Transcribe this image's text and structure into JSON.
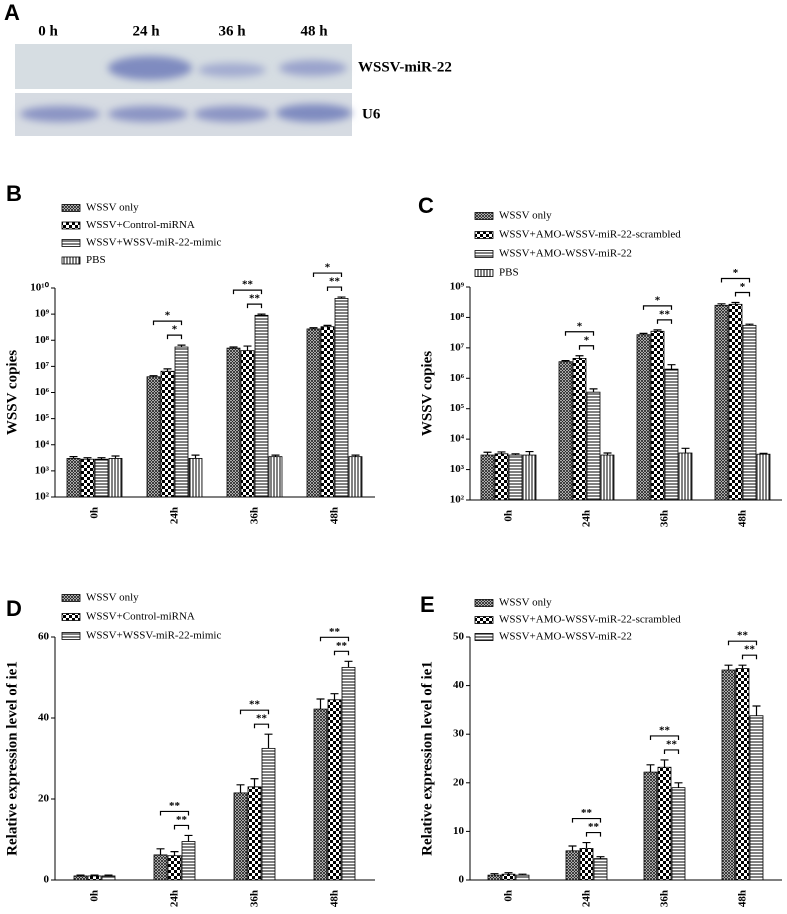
{
  "panel_a": {
    "panel": "A",
    "lanes": [
      "0 h",
      "24 h",
      "36 h",
      "48 h"
    ],
    "bands": [
      "WSSV-miR-22",
      "U6"
    ]
  },
  "chart_data": [
    {
      "panel": "B",
      "type": "bar",
      "log_scale": true,
      "ylabel": "WSSV copies",
      "legend": "upper left",
      "categories": [
        "0h",
        "24h",
        "36h",
        "48h"
      ],
      "ylim": [
        100,
        10000000000
      ],
      "yticks": [
        {
          "value": 100,
          "label": "10²"
        },
        {
          "value": 1000,
          "label": "10³"
        },
        {
          "value": 10000,
          "label": "10⁴"
        },
        {
          "value": 100000,
          "label": "10⁵"
        },
        {
          "value": 1000000,
          "label": "10⁶"
        },
        {
          "value": 10000000,
          "label": "10⁷"
        },
        {
          "value": 100000000,
          "label": "10⁸"
        },
        {
          "value": 1000000000,
          "label": "10⁹"
        },
        {
          "value": 10000000000,
          "label": "10¹⁰"
        }
      ],
      "series": [
        {
          "name": "WSSV only",
          "pattern": "cross",
          "color": "#000000",
          "values": [
            3000,
            4000000,
            50000000,
            270000000
          ],
          "errors": [
            500,
            400000,
            5000000,
            30000000
          ]
        },
        {
          "name": "WSSV+Control-miRNA",
          "pattern": "checker",
          "color": "#000000",
          "values": [
            2800,
            6500000,
            40000000,
            330000000
          ],
          "errors": [
            400,
            1500000,
            20000000,
            40000000
          ]
        },
        {
          "name": "WSSV+WSSV-miR-22-mimic",
          "pattern": "hlines",
          "color": "#000000",
          "values": [
            2800,
            55000000,
            900000000,
            4000000000
          ],
          "errors": [
            400,
            10000000,
            100000000,
            500000000
          ]
        },
        {
          "name": "PBS",
          "pattern": "vlines",
          "color": "#000000",
          "values": [
            3000,
            3000,
            3500,
            3500
          ],
          "errors": [
            700,
            1000,
            500,
            500
          ]
        }
      ],
      "significance": [
        [],
        [
          "*",
          "*"
        ],
        [
          "**",
          "**"
        ],
        [
          "*",
          "**"
        ]
      ]
    },
    {
      "panel": "C",
      "type": "bar",
      "log_scale": true,
      "ylabel": "WSSV copies",
      "legend": "upper left",
      "categories": [
        "0h",
        "24h",
        "36h",
        "48h"
      ],
      "ylim": [
        100,
        1000000000
      ],
      "yticks": [
        {
          "value": 100,
          "label": "10²"
        },
        {
          "value": 1000,
          "label": "10³"
        },
        {
          "value": 10000,
          "label": "10⁴"
        },
        {
          "value": 100000,
          "label": "10⁵"
        },
        {
          "value": 1000000,
          "label": "10⁶"
        },
        {
          "value": 10000000,
          "label": "10⁷"
        },
        {
          "value": 100000000,
          "label": "10⁸"
        },
        {
          "value": 1000000000,
          "label": "10⁹"
        }
      ],
      "series": [
        {
          "name": "WSSV only",
          "pattern": "cross",
          "color": "#000000",
          "values": [
            3000,
            3500000,
            27000000,
            250000000
          ],
          "errors": [
            700,
            300000,
            3000000,
            30000000
          ]
        },
        {
          "name": "WSSV+AMO-WSSV-miR-22-scrambled",
          "pattern": "checker",
          "color": "#000000",
          "values": [
            3300,
            4500000,
            35000000,
            270000000
          ],
          "errors": [
            500,
            1000000,
            4000000,
            40000000
          ]
        },
        {
          "name": "WSSV+AMO-WSSV-miR-22",
          "pattern": "hlines",
          "color": "#000000",
          "values": [
            3000,
            350000,
            2000000,
            55000000
          ],
          "errors": [
            300,
            100000,
            800000,
            5000000
          ]
        },
        {
          "name": "PBS",
          "pattern": "vlines",
          "color": "#000000",
          "values": [
            3000,
            3000,
            3500,
            3200
          ],
          "errors": [
            900,
            500,
            1500,
            200
          ]
        }
      ],
      "significance": [
        [],
        [
          "*",
          "*"
        ],
        [
          "*",
          "**"
        ],
        [
          "*",
          "*"
        ]
      ]
    },
    {
      "panel": "D",
      "type": "bar",
      "log_scale": false,
      "ylabel": "Relative expression level of ie1",
      "legend": "upper left",
      "categories": [
        "0h",
        "24h",
        "36h",
        "48h"
      ],
      "ylim": [
        0,
        60
      ],
      "yticks": [
        0,
        20,
        40,
        60
      ],
      "series": [
        {
          "name": "WSSV only",
          "pattern": "cross",
          "color": "#000000",
          "values": [
            1,
            6.2,
            21.5,
            42.2
          ],
          "errors": [
            0.2,
            1.5,
            2,
            2.5
          ]
        },
        {
          "name": "WSSV+Control-miRNA",
          "pattern": "checker",
          "color": "#000000",
          "values": [
            1,
            6,
            23,
            44.5
          ],
          "errors": [
            0.2,
            1,
            2,
            1.5
          ]
        },
        {
          "name": "WSSV+WSSV-miR-22-mimic",
          "pattern": "hlines",
          "color": "#000000",
          "values": [
            1,
            9.5,
            32.5,
            52.5
          ],
          "errors": [
            0.2,
            1.5,
            3.5,
            1.5
          ]
        }
      ],
      "significance": [
        [],
        [
          "**",
          "**"
        ],
        [
          "**",
          "**"
        ],
        [
          "**",
          "**"
        ]
      ]
    },
    {
      "panel": "E",
      "type": "bar",
      "log_scale": false,
      "ylabel": "Relative expression level of ie1",
      "legend": "upper left",
      "categories": [
        "0h",
        "24h",
        "36h",
        "48h"
      ],
      "ylim": [
        0,
        50
      ],
      "yticks": [
        0,
        10,
        20,
        30,
        40,
        50
      ],
      "series": [
        {
          "name": "WSSV only",
          "pattern": "cross",
          "color": "#000000",
          "values": [
            1,
            6,
            22.2,
            43.2
          ],
          "errors": [
            0.3,
            1,
            1.5,
            1
          ]
        },
        {
          "name": "WSSV+AMO-WSSV-miR-22-scrambled",
          "pattern": "checker",
          "color": "#000000",
          "values": [
            1.2,
            6.5,
            23.2,
            43.5
          ],
          "errors": [
            0.3,
            1.2,
            1.5,
            0.7
          ]
        },
        {
          "name": "WSSV+AMO-WSSV-miR-22",
          "pattern": "hlines",
          "color": "#000000",
          "values": [
            1,
            4.4,
            19,
            33.8
          ],
          "errors": [
            0.2,
            0.4,
            1,
            2
          ]
        }
      ],
      "significance": [
        [],
        [
          "**",
          "**"
        ],
        [
          "**",
          "**"
        ],
        [
          "**",
          "**"
        ]
      ]
    }
  ]
}
